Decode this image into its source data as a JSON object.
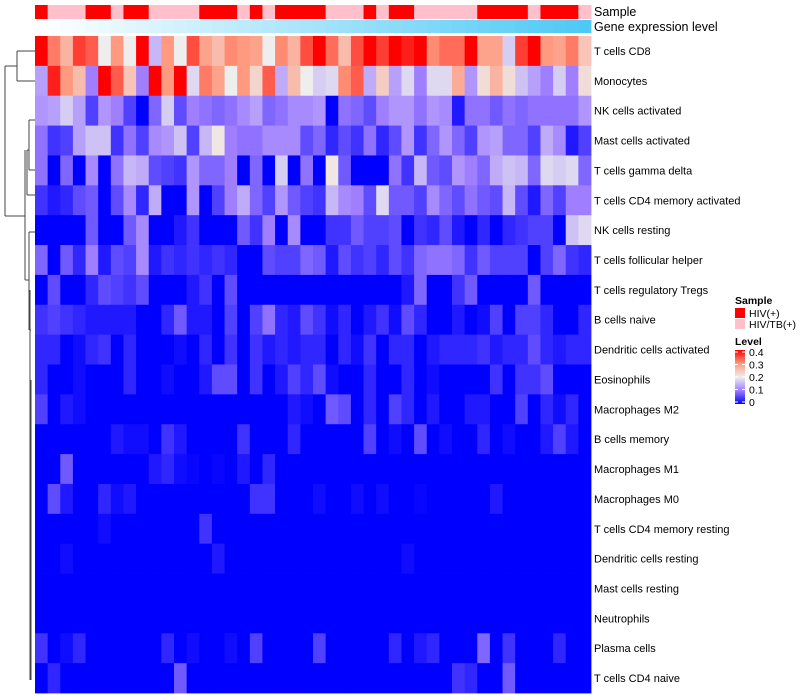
{
  "chart_data": {
    "type": "heatmap",
    "title": "",
    "annotations": {
      "sample_label": "Sample",
      "gene_label": "Gene expression level",
      "sample": [
        "HIV(+)",
        "HIV/TB(+)",
        "HIV/TB(+)",
        "HIV/TB(+)",
        "HIV(+)",
        "HIV(+)",
        "HIV/TB(+)",
        "HIV(+)",
        "HIV(+)",
        "HIV/TB(+)",
        "HIV/TB(+)",
        "HIV/TB(+)",
        "HIV/TB(+)",
        "HIV(+)",
        "HIV(+)",
        "HIV(+)",
        "HIV/TB(+)",
        "HIV(+)",
        "HIV/TB(+)",
        "HIV(+)",
        "HIV(+)",
        "HIV(+)",
        "HIV(+)",
        "HIV/TB(+)",
        "HIV/TB(+)",
        "HIV/TB(+)",
        "HIV(+)",
        "HIV/TB(+)",
        "HIV(+)",
        "HIV(+)",
        "HIV/TB(+)",
        "HIV/TB(+)",
        "HIV/TB(+)",
        "HIV/TB(+)",
        "HIV/TB(+)",
        "HIV(+)",
        "HIV(+)",
        "HIV(+)",
        "HIV(+)",
        "HIV/TB(+)",
        "HIV(+)",
        "HIV(+)",
        "HIV(+)",
        "HIV/TB(+)"
      ],
      "gene_color_low": "#ffffff",
      "gene_color_high": "#4ec9f5"
    },
    "rows": [
      "T cells CD8",
      "Monocytes",
      "NK cells activated",
      "Mast cells activated",
      "T cells gamma delta",
      "T cells CD4 memory activated",
      "NK cells resting",
      "T cells follicular helper",
      "T cells regulatory  Tregs",
      "B cells naive",
      "Dendritic cells activated",
      "Eosinophils",
      "Macrophages M2",
      "B cells memory",
      "Macrophages M1",
      "Macrophages M0",
      "T cells CD4 memory resting",
      "Dendritic cells resting",
      "Mast cells resting",
      "Neutrophils",
      "Plasma cells",
      "T cells CD4 naive"
    ],
    "values": [
      [
        0.4,
        0.32,
        0.27,
        0.36,
        0.34,
        0.2,
        0.3,
        0.2,
        0.4,
        0.15,
        0.3,
        0.2,
        0.35,
        0.29,
        0.26,
        0.31,
        0.3,
        0.29,
        0.2,
        0.31,
        0.27,
        0.35,
        0.4,
        0.33,
        0.26,
        0.35,
        0.4,
        0.36,
        0.4,
        0.38,
        0.4,
        0.31,
        0.33,
        0.33,
        0.4,
        0.29,
        0.29,
        0.17,
        0.36,
        0.4,
        0.3,
        0.29,
        0.32,
        0.25
      ],
      [
        0.13,
        0.38,
        0.3,
        0.26,
        0.1,
        0.4,
        0.34,
        0.25,
        0.1,
        0.4,
        0.3,
        0.4,
        0.18,
        0.32,
        0.29,
        0.2,
        0.3,
        0.23,
        0.34,
        0.14,
        0.26,
        0.2,
        0.17,
        0.18,
        0.31,
        0.34,
        0.14,
        0.24,
        0.13,
        0.18,
        0.1,
        0.18,
        0.18,
        0.28,
        0.12,
        0.22,
        0.27,
        0.22,
        0.16,
        0.13,
        0.1,
        0.17,
        0.1,
        0.22
      ],
      [
        0.12,
        0.13,
        0.17,
        0.13,
        0.05,
        0.12,
        0.1,
        0.05,
        0,
        0.08,
        0.17,
        0.06,
        0.1,
        0.09,
        0.08,
        0.09,
        0.11,
        0.13,
        0.08,
        0.09,
        0.11,
        0.11,
        0.12,
        0,
        0.09,
        0.08,
        0.06,
        0.1,
        0.12,
        0.12,
        0.09,
        0.12,
        0.11,
        0.02,
        0.09,
        0.09,
        0.07,
        0.09,
        0.08,
        0.09,
        0.09,
        0.09,
        0.09,
        0.12
      ],
      [
        0.09,
        0.04,
        0.05,
        0.13,
        0.16,
        0.16,
        0.04,
        0.09,
        0.05,
        0.11,
        0.12,
        0.16,
        0.05,
        0.15,
        0.21,
        0.1,
        0.09,
        0.09,
        0.11,
        0.11,
        0.11,
        0.06,
        0.08,
        0.03,
        0.06,
        0.04,
        0.09,
        0.03,
        0.06,
        0.12,
        0.04,
        0.08,
        0.12,
        0.08,
        0.05,
        0.12,
        0.13,
        0.08,
        0.08,
        0.05,
        0.14,
        0.11,
        0.02,
        0.05
      ],
      [
        0.09,
        0,
        0.08,
        0,
        0.11,
        0,
        0.09,
        0.15,
        0.14,
        0.06,
        0.05,
        0.04,
        0.12,
        0.08,
        0.08,
        0.1,
        0,
        0.08,
        0,
        0.17,
        0,
        0.09,
        0,
        0.21,
        0.07,
        0,
        0,
        0,
        0.09,
        0.04,
        0.15,
        0.07,
        0.06,
        0.12,
        0.1,
        0.08,
        0.14,
        0.16,
        0.15,
        0.08,
        0.18,
        0.17,
        0.18,
        0.08
      ],
      [
        0.04,
        0.02,
        0.03,
        0.06,
        0.07,
        0,
        0.06,
        0.11,
        0.03,
        0.14,
        0,
        0,
        0.12,
        0,
        0.05,
        0.1,
        0.14,
        0.08,
        0.05,
        0.12,
        0.07,
        0.05,
        0.04,
        0.15,
        0.11,
        0.1,
        0.06,
        0.18,
        0.07,
        0.07,
        0.05,
        0.11,
        0.08,
        0.06,
        0.09,
        0.07,
        0.06,
        0.15,
        0.06,
        0.02,
        0.08,
        0.05,
        0.1,
        0.1
      ],
      [
        0,
        0,
        0,
        0,
        0.07,
        0,
        0,
        0.07,
        0.11,
        0,
        0,
        0.02,
        0.04,
        0,
        0,
        0,
        0.07,
        0.04,
        0.1,
        0,
        0.11,
        0,
        0,
        0.04,
        0.04,
        0.07,
        0.05,
        0.05,
        0.06,
        0,
        0.04,
        0.03,
        0.06,
        0.02,
        0,
        0.03,
        0,
        0.03,
        0.04,
        0.05,
        0.05,
        0,
        0.16,
        0.18
      ],
      [
        0.08,
        0,
        0.07,
        0.03,
        0.1,
        0.02,
        0.06,
        0.05,
        0.11,
        0.02,
        0.04,
        0.03,
        0.04,
        0.03,
        0.04,
        0.03,
        0,
        0,
        0.06,
        0.05,
        0.05,
        0.08,
        0.07,
        0.02,
        0.06,
        0.04,
        0.05,
        0.03,
        0.06,
        0.04,
        0.08,
        0.09,
        0.09,
        0.08,
        0.04,
        0.07,
        0.05,
        0.05,
        0.05,
        0,
        0.05,
        0.08,
        0.04,
        0.03
      ],
      [
        0,
        0.06,
        0,
        0,
        0.03,
        0.06,
        0.05,
        0.04,
        0.06,
        0,
        0,
        0,
        0.02,
        0.04,
        0,
        0.06,
        0,
        0,
        0,
        0,
        0,
        0,
        0,
        0,
        0,
        0,
        0,
        0,
        0,
        0.02,
        0.08,
        0,
        0,
        0.04,
        0.07,
        0,
        0,
        0,
        0,
        0.07,
        0,
        0,
        0,
        0
      ],
      [
        0.04,
        0.05,
        0.04,
        0.03,
        0.02,
        0.02,
        0.02,
        0.02,
        0,
        0,
        0.03,
        0.07,
        0.02,
        0.02,
        0,
        0.05,
        0,
        0.05,
        0.09,
        0.03,
        0.02,
        0.06,
        0.04,
        0.01,
        0.03,
        0,
        0.02,
        0.04,
        0.01,
        0.06,
        0.03,
        0,
        0,
        0.02,
        0,
        0.01,
        0.05,
        0,
        0.05,
        0.05,
        0.03,
        0,
        0,
        0.03
      ],
      [
        0.03,
        0.03,
        0,
        0.01,
        0.03,
        0.04,
        0,
        0.03,
        0,
        0,
        0,
        0.01,
        0,
        0.03,
        0,
        0.04,
        0,
        0.04,
        0.02,
        0.03,
        0.02,
        0.03,
        0.03,
        0,
        0.03,
        0.01,
        0.04,
        0,
        0.03,
        0.03,
        0,
        0.02,
        0.03,
        0.03,
        0.03,
        0.04,
        0.02,
        0.03,
        0.03,
        0.06,
        0.03,
        0.02,
        0.03,
        0.03
      ],
      [
        0.03,
        0,
        0,
        0.01,
        0,
        0,
        0,
        0.03,
        0,
        0,
        0.01,
        0,
        0,
        0.02,
        0.06,
        0.06,
        0,
        0.04,
        0,
        0.02,
        0.05,
        0.03,
        0.06,
        0.01,
        0,
        0,
        0.03,
        0,
        0,
        0.03,
        0,
        0.01,
        0,
        0,
        0,
        0,
        0.04,
        0,
        0.04,
        0.04,
        0.06,
        0,
        0,
        0
      ],
      [
        0.05,
        0,
        0.02,
        0.01,
        0,
        0,
        0,
        0,
        0,
        0,
        0,
        0,
        0,
        0,
        0,
        0,
        0,
        0,
        0,
        0,
        0.02,
        0.01,
        0,
        0.07,
        0.06,
        0,
        0.03,
        0,
        0.05,
        0.03,
        0,
        0.02,
        0,
        0,
        0.02,
        0.02,
        0,
        0,
        0.05,
        0,
        0.03,
        0.01,
        0.03,
        0
      ],
      [
        0,
        0,
        0,
        0,
        0,
        0,
        0.02,
        0.01,
        0.01,
        0,
        0.04,
        0.02,
        0,
        0,
        0,
        0,
        0.04,
        0,
        0,
        0,
        0.03,
        0,
        0,
        0,
        0,
        0,
        0.05,
        0,
        0.01,
        0,
        0.06,
        0,
        0.01,
        0,
        0,
        0.03,
        0,
        0.01,
        0,
        0,
        0.02,
        0.05,
        0.02,
        0
      ],
      [
        0,
        0,
        0.07,
        0,
        0,
        0,
        0,
        0,
        0,
        0.02,
        0.03,
        0.01,
        0.005,
        0,
        0.005,
        0,
        0.02,
        0,
        0.03,
        0,
        0,
        0,
        0,
        0,
        0,
        0,
        0,
        0,
        0,
        0,
        0,
        0,
        0,
        0,
        0,
        0,
        0,
        0,
        0,
        0,
        0,
        0,
        0,
        0
      ],
      [
        0,
        0.06,
        0.02,
        0,
        0,
        0.03,
        0.01,
        0.02,
        0,
        0,
        0,
        0,
        0,
        0,
        0,
        0,
        0,
        0.04,
        0.04,
        0,
        0,
        0,
        0.01,
        0,
        0,
        0.01,
        0,
        0.01,
        0,
        0,
        0.005,
        0,
        0,
        0,
        0,
        0,
        0.02,
        0,
        0,
        0,
        0,
        0,
        0,
        0
      ],
      [
        0,
        0,
        0,
        0,
        0,
        0.01,
        0,
        0,
        0,
        0,
        0,
        0,
        0,
        0.04,
        0,
        0,
        0,
        0,
        0,
        0,
        0,
        0,
        0,
        0,
        0,
        0,
        0,
        0,
        0,
        0,
        0,
        0,
        0,
        0,
        0,
        0,
        0,
        0,
        0,
        0,
        0,
        0,
        0,
        0
      ],
      [
        0,
        0,
        0.01,
        0,
        0,
        0,
        0,
        0,
        0,
        0,
        0,
        0,
        0,
        0,
        0.02,
        0,
        0,
        0,
        0,
        0,
        0,
        0,
        0,
        0,
        0,
        0,
        0,
        0,
        0,
        0.01,
        0,
        0,
        0,
        0,
        0,
        0,
        0,
        0,
        0,
        0,
        0,
        0,
        0,
        0
      ],
      [
        0,
        0,
        0,
        0,
        0,
        0,
        0,
        0,
        0,
        0,
        0,
        0,
        0,
        0,
        0,
        0,
        0,
        0,
        0,
        0,
        0,
        0,
        0,
        0,
        0,
        0,
        0,
        0,
        0,
        0,
        0,
        0,
        0,
        0,
        0,
        0,
        0,
        0,
        0,
        0,
        0,
        0,
        0,
        0
      ],
      [
        0,
        0,
        0,
        0,
        0,
        0,
        0,
        0,
        0,
        0,
        0,
        0,
        0,
        0,
        0,
        0,
        0,
        0,
        0,
        0,
        0,
        0,
        0,
        0,
        0,
        0,
        0,
        0,
        0,
        0,
        0,
        0,
        0,
        0,
        0,
        0,
        0,
        0,
        0,
        0,
        0,
        0,
        0,
        0
      ],
      [
        0.04,
        0,
        0.01,
        0.03,
        0,
        0,
        0,
        0,
        0,
        0,
        0.03,
        0,
        0.01,
        0,
        0,
        0.01,
        0,
        0.05,
        0,
        0,
        0,
        0,
        0.05,
        0,
        0,
        0,
        0,
        0,
        0.03,
        0,
        0.02,
        0.03,
        0,
        0,
        0,
        0.08,
        0,
        0.04,
        0,
        0,
        0,
        0.03,
        0,
        0
      ],
      [
        0,
        0.03,
        0,
        0,
        0,
        0,
        0,
        0,
        0,
        0,
        0,
        0.07,
        0,
        0,
        0,
        0,
        0,
        0,
        0,
        0,
        0,
        0,
        0,
        0,
        0,
        0,
        0,
        0,
        0,
        0,
        0,
        0,
        0,
        0.04,
        0.03,
        0,
        0,
        0.07,
        0,
        0,
        0,
        0,
        0,
        0
      ]
    ],
    "color_scale": {
      "min": 0,
      "max": 0.4,
      "stops": [
        [
          0,
          "#0000ff"
        ],
        [
          0.1,
          "#9f7fff"
        ],
        [
          0.2,
          "#eeeeee"
        ],
        [
          0.3,
          "#ff9a80"
        ],
        [
          0.4,
          "#ff0000"
        ]
      ]
    },
    "legend": {
      "sample_title": "Sample",
      "sample_items": [
        {
          "label": "HIV(+)",
          "color": "#ff0000"
        },
        {
          "label": "HIV/TB(+)",
          "color": "#ffc0cb"
        }
      ],
      "level_title": "Level",
      "level_ticks": [
        "0.4",
        "0.3",
        "0.2",
        "0.1",
        "0"
      ],
      "placement": "right"
    }
  }
}
